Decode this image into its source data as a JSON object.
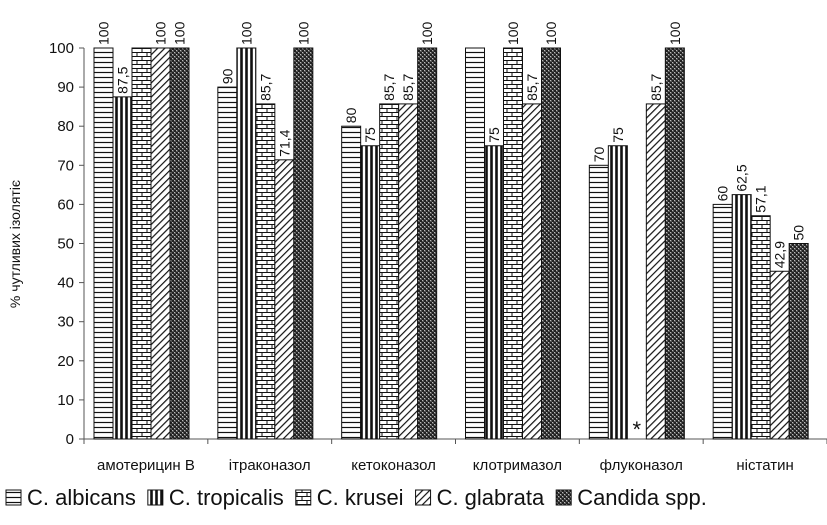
{
  "chart_data": {
    "type": "bar",
    "title": "",
    "xlabel": "",
    "ylabel": "% чутливих ізолятіє",
    "ylim": [
      0,
      100
    ],
    "yticks": [
      0,
      10,
      20,
      30,
      40,
      50,
      60,
      70,
      80,
      90,
      100
    ],
    "grid": false,
    "legend_position": "bottom",
    "categories": [
      "амотерицин В",
      "ітраконазол",
      "кетоконазол",
      "клотримазол",
      "флуконазол",
      "ністатин"
    ],
    "series": [
      {
        "name": "C. albicans",
        "pattern": "hlines",
        "values": [
          100,
          90,
          80,
          100,
          70,
          60
        ],
        "labels": [
          "100",
          "90",
          "80",
          "",
          "70",
          "60"
        ]
      },
      {
        "name": "C. tropicalis",
        "pattern": "vlines",
        "values": [
          87.5,
          100,
          75,
          75,
          75,
          62.5
        ],
        "labels": [
          "87,5",
          "100",
          "75",
          "75",
          "75",
          "62,5"
        ]
      },
      {
        "name": "C. krusei",
        "pattern": "brick",
        "values": [
          100,
          85.7,
          85.7,
          100,
          null,
          57.1
        ],
        "labels": [
          "",
          "85,7",
          "85,7",
          "100",
          "",
          "57,1"
        ]
      },
      {
        "name": "C. glabrata",
        "pattern": "diagonal",
        "values": [
          100,
          71.4,
          85.7,
          85.7,
          85.7,
          42.9
        ],
        "labels": [
          "100",
          "71,4",
          "85,7",
          "85,7",
          "85,7",
          "42,9"
        ]
      },
      {
        "name": "Candida spp.",
        "pattern": "crosshatch",
        "values": [
          100,
          100,
          100,
          100,
          100,
          50
        ],
        "labels": [
          "100",
          "100",
          "100",
          "100",
          "100",
          "50"
        ]
      }
    ],
    "annotations": [
      {
        "category": "флуконазол",
        "series": "C. krusei",
        "text": "*"
      }
    ],
    "colors": {
      "bar_stroke": "#111111",
      "bar_fill": "#ffffff",
      "axis": "#555555"
    }
  }
}
